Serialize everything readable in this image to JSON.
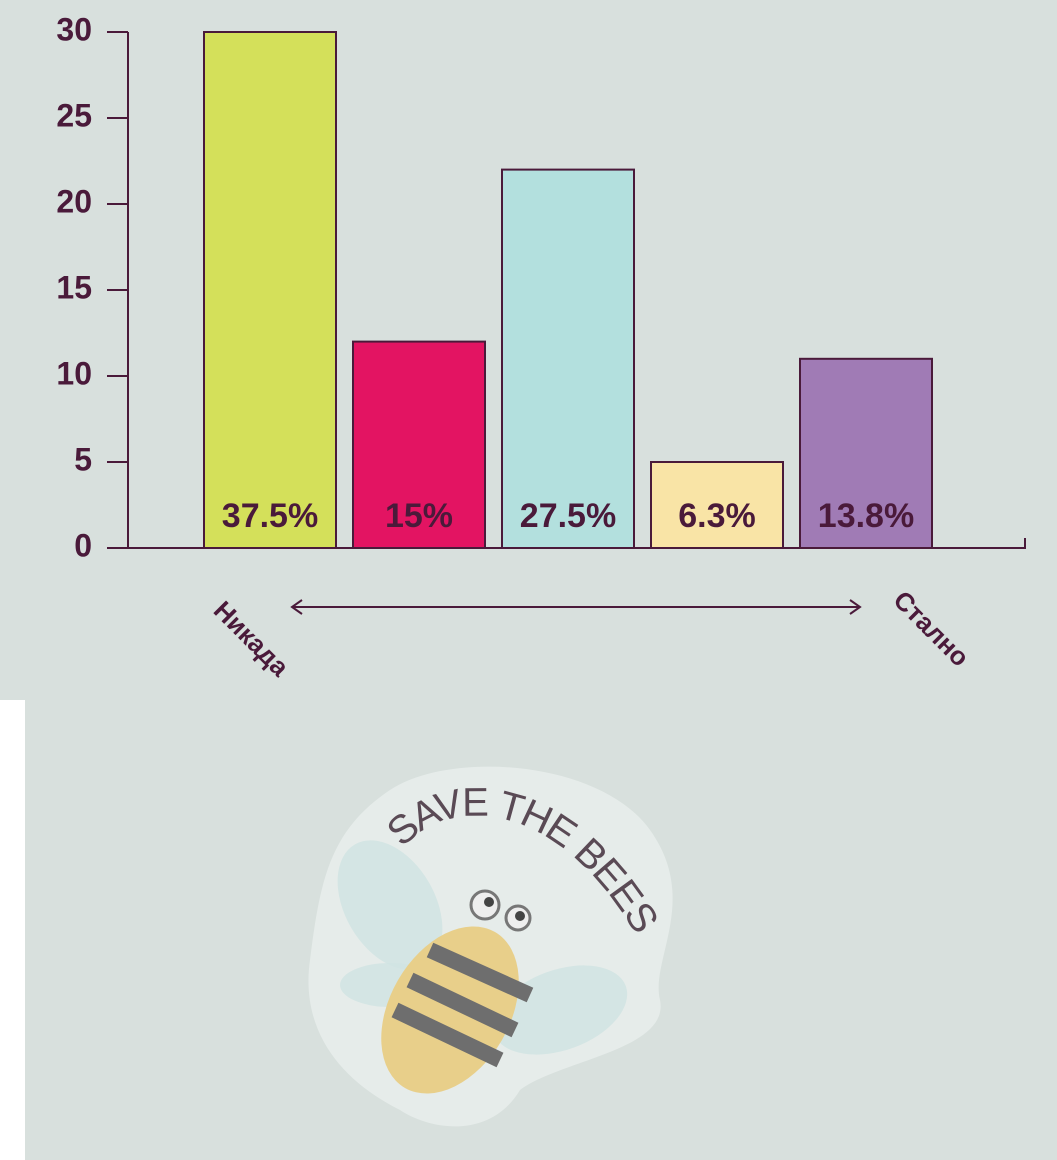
{
  "chart_data": {
    "type": "bar",
    "categories": [
      null,
      null,
      null,
      null,
      null
    ],
    "values": [
      30,
      12,
      22,
      5,
      11
    ],
    "colors": [
      "#d4e05a",
      "#e31462",
      "#b3e0de",
      "#f9e4a6",
      "#a07bb5"
    ],
    "share_labels": [
      "37.5%",
      "15%",
      "27.5%",
      "6.3%",
      "13.8%"
    ],
    "ylim": [
      0,
      30
    ],
    "yticks": [
      0,
      5,
      10,
      15,
      20,
      25,
      30
    ],
    "x_start_label": "Никада",
    "x_end_label": "Стално",
    "sticker_text": "SAVE THE BEES"
  }
}
